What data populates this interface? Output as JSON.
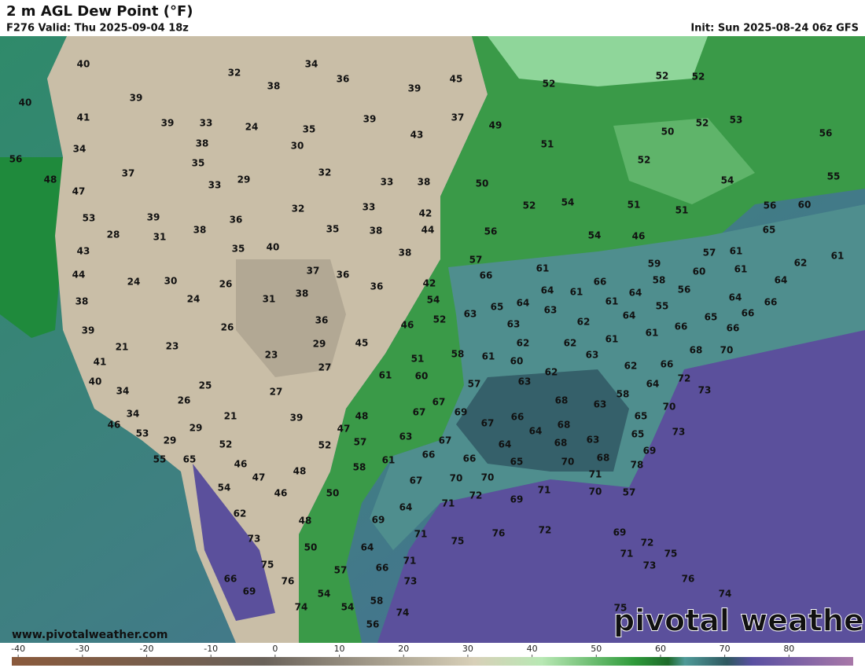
{
  "header": {
    "title": "2 m AGL Dew Point (°F)",
    "valid": "F276 Valid: Thu 2025-09-04 18z",
    "init": "Init: Sun 2025-08-24 06z GFS"
  },
  "map": {
    "labels": [
      40,
      32,
      34,
      36,
      38,
      39,
      45,
      52,
      52,
      52,
      40,
      39,
      41,
      39,
      33,
      24,
      35,
      39,
      37,
      49,
      52,
      53,
      56,
      50,
      34,
      38,
      30,
      43,
      51,
      56,
      37,
      35,
      32,
      29,
      33,
      33,
      38,
      50,
      52,
      54,
      55,
      48,
      47,
      53,
      39,
      36,
      32,
      33,
      42,
      52,
      54,
      51,
      51,
      60,
      56,
      28,
      31,
      38,
      35,
      40,
      35,
      38,
      44,
      56,
      54,
      46,
      65,
      43,
      38,
      57,
      57,
      61,
      62,
      61,
      44,
      24,
      30,
      26,
      37,
      36,
      36,
      42,
      66,
      61,
      66,
      59,
      60,
      61,
      64,
      38,
      24,
      31,
      38,
      54,
      65,
      64,
      64,
      61,
      61,
      64,
      58,
      56,
      64,
      66,
      39,
      26,
      36,
      46,
      52,
      63,
      63,
      63,
      62,
      64,
      55,
      65,
      66,
      66,
      66,
      21,
      23,
      29,
      45,
      62,
      62,
      61,
      61,
      68,
      70,
      41,
      23,
      27,
      51,
      58,
      61,
      60,
      63,
      62,
      66,
      40,
      25,
      27,
      61,
      60,
      57,
      62,
      63,
      64,
      72,
      73,
      34,
      26,
      21,
      39,
      48,
      67,
      67,
      69,
      66,
      68,
      63,
      58,
      65,
      70,
      34,
      46,
      53,
      29,
      29,
      47,
      63,
      67,
      67,
      64,
      68,
      65,
      73,
      55,
      65,
      52,
      46,
      52,
      57,
      61,
      66,
      66,
      64,
      65,
      68,
      70,
      63,
      68,
      69,
      78,
      54,
      47,
      48,
      58,
      67,
      70,
      70,
      71,
      71,
      70,
      57,
      46,
      50,
      72,
      69,
      64,
      71,
      62,
      48,
      69,
      75,
      76,
      72,
      69,
      71,
      73,
      50,
      64,
      72,
      71,
      75,
      73,
      75,
      57,
      66,
      71,
      66,
      76,
      54,
      73,
      76,
      74,
      69,
      58,
      74,
      54,
      74,
      75,
      56
    ]
  },
  "colorbar": {
    "range": [
      -41,
      90
    ],
    "ticks": [
      -40,
      -30,
      -20,
      -10,
      0,
      10,
      20,
      30,
      40,
      50,
      60,
      70,
      80
    ]
  },
  "watermark": {
    "url": "www.pivotalweather.com",
    "logo": "pivotal weather"
  }
}
